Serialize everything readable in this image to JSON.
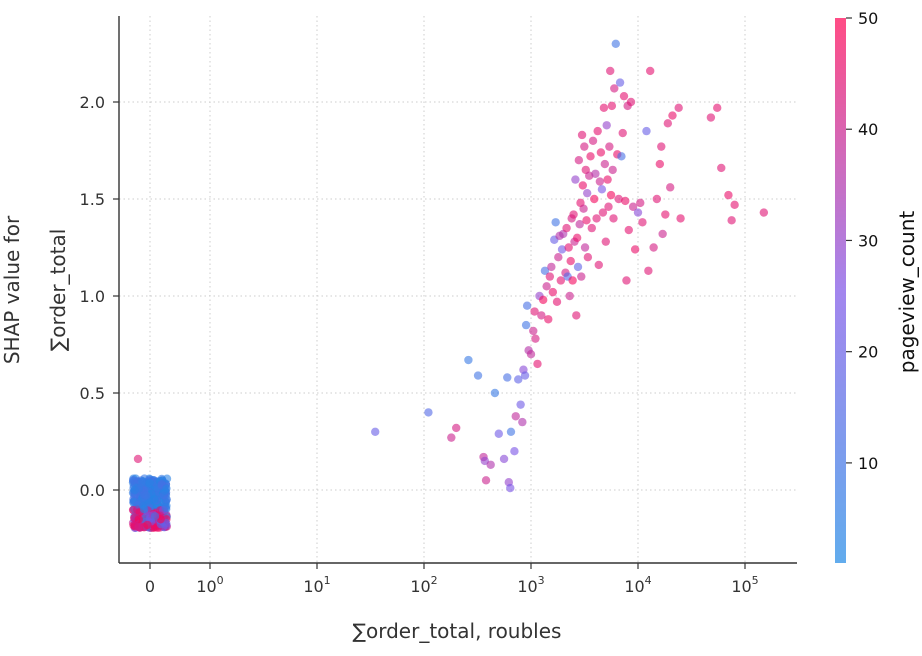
{
  "chart_data": {
    "type": "scatter",
    "title": "",
    "xlabel": "∑order_total, roubles",
    "ylabel_line1": "SHAP value for",
    "ylabel_line2": "∑order_total",
    "x_scale": "symlog",
    "x_ticks": [
      {
        "value": 0,
        "base": "0",
        "exp": ""
      },
      {
        "value": 1,
        "base": "10",
        "exp": "0"
      },
      {
        "value": 10,
        "base": "10",
        "exp": "1"
      },
      {
        "value": 100,
        "base": "10",
        "exp": "2"
      },
      {
        "value": 1000,
        "base": "10",
        "exp": "3"
      },
      {
        "value": 10000,
        "base": "10",
        "exp": "4"
      },
      {
        "value": 100000,
        "base": "10",
        "exp": "5"
      }
    ],
    "y_ticks": [
      "0.0",
      "0.5",
      "1.0",
      "1.5",
      "2.0"
    ],
    "ylim": [
      -0.34,
      2.43
    ],
    "grid": true,
    "colorbar": {
      "label": "pageview_count",
      "ticks": [
        "10",
        "20",
        "30",
        "40",
        "50"
      ],
      "range": [
        1,
        50
      ],
      "low_color": "#1E88E5",
      "high_color": "#FF0051"
    },
    "points": [
      [
        35,
        0.3,
        20
      ],
      [
        110,
        0.4,
        15
      ],
      [
        180,
        0.27,
        40
      ],
      [
        200,
        0.32,
        42
      ],
      [
        260,
        0.67,
        8
      ],
      [
        320,
        0.59,
        10
      ],
      [
        360,
        0.17,
        38
      ],
      [
        370,
        0.15,
        30
      ],
      [
        380,
        0.05,
        40
      ],
      [
        420,
        0.13,
        35
      ],
      [
        460,
        0.5,
        8
      ],
      [
        500,
        0.29,
        22
      ],
      [
        560,
        0.16,
        28
      ],
      [
        600,
        0.58,
        12
      ],
      [
        620,
        0.04,
        30
      ],
      [
        640,
        0.01,
        25
      ],
      [
        650,
        0.3,
        10
      ],
      [
        700,
        0.2,
        25
      ],
      [
        720,
        0.38,
        38
      ],
      [
        760,
        0.57,
        18
      ],
      [
        800,
        0.44,
        22
      ],
      [
        830,
        0.35,
        35
      ],
      [
        850,
        0.62,
        28
      ],
      [
        880,
        0.59,
        20
      ],
      [
        900,
        0.85,
        10
      ],
      [
        920,
        0.95,
        12
      ],
      [
        950,
        0.72,
        36
      ],
      [
        1000,
        0.7,
        38
      ],
      [
        1050,
        0.82,
        40
      ],
      [
        1080,
        0.92,
        44
      ],
      [
        1100,
        0.78,
        42
      ],
      [
        1150,
        0.65,
        45
      ],
      [
        1200,
        1.0,
        30
      ],
      [
        1250,
        0.9,
        42
      ],
      [
        1300,
        0.98,
        48
      ],
      [
        1350,
        1.13,
        12
      ],
      [
        1400,
        1.05,
        40
      ],
      [
        1450,
        0.88,
        46
      ],
      [
        1500,
        1.1,
        44
      ],
      [
        1550,
        1.15,
        38
      ],
      [
        1600,
        1.02,
        46
      ],
      [
        1650,
        1.29,
        20
      ],
      [
        1700,
        1.38,
        10
      ],
      [
        1750,
        0.97,
        45
      ],
      [
        1800,
        1.2,
        40
      ],
      [
        1850,
        1.31,
        36
      ],
      [
        1900,
        1.08,
        45
      ],
      [
        1950,
        1.24,
        22
      ],
      [
        2000,
        1.32,
        35
      ],
      [
        2100,
        1.12,
        42
      ],
      [
        2150,
        1.35,
        44
      ],
      [
        2200,
        1.1,
        15
      ],
      [
        2250,
        1.25,
        45
      ],
      [
        2300,
        1.0,
        40
      ],
      [
        2350,
        1.18,
        46
      ],
      [
        2400,
        1.4,
        42
      ],
      [
        2450,
        1.08,
        48
      ],
      [
        2500,
        1.42,
        44
      ],
      [
        2550,
        1.28,
        40
      ],
      [
        2600,
        1.6,
        30
      ],
      [
        2650,
        0.9,
        44
      ],
      [
        2700,
        1.3,
        46
      ],
      [
        2750,
        1.15,
        18
      ],
      [
        2800,
        1.7,
        42
      ],
      [
        2850,
        1.37,
        38
      ],
      [
        2900,
        1.48,
        45
      ],
      [
        2950,
        1.1,
        40
      ],
      [
        3000,
        1.83,
        44
      ],
      [
        3050,
        1.57,
        46
      ],
      [
        3100,
        1.45,
        40
      ],
      [
        3150,
        1.77,
        42
      ],
      [
        3200,
        1.25,
        38
      ],
      [
        3250,
        1.65,
        44
      ],
      [
        3300,
        1.39,
        46
      ],
      [
        3350,
        1.53,
        30
      ],
      [
        3400,
        1.2,
        44
      ],
      [
        3500,
        1.62,
        40
      ],
      [
        3600,
        1.72,
        46
      ],
      [
        3700,
        1.35,
        44
      ],
      [
        3800,
        1.8,
        42
      ],
      [
        3900,
        1.5,
        48
      ],
      [
        4000,
        1.63,
        36
      ],
      [
        4100,
        1.4,
        44
      ],
      [
        4200,
        1.85,
        45
      ],
      [
        4300,
        1.16,
        44
      ],
      [
        4400,
        1.59,
        40
      ],
      [
        4500,
        1.74,
        46
      ],
      [
        4600,
        1.55,
        25
      ],
      [
        4700,
        1.43,
        44
      ],
      [
        4800,
        1.97,
        45
      ],
      [
        4900,
        1.68,
        40
      ],
      [
        5000,
        1.28,
        44
      ],
      [
        5100,
        1.88,
        30
      ],
      [
        5200,
        1.6,
        46
      ],
      [
        5300,
        1.46,
        44
      ],
      [
        5400,
        1.77,
        42
      ],
      [
        5500,
        2.16,
        44
      ],
      [
        5600,
        1.52,
        48
      ],
      [
        5700,
        1.98,
        45
      ],
      [
        5800,
        1.65,
        40
      ],
      [
        5900,
        1.4,
        44
      ],
      [
        6000,
        2.07,
        42
      ],
      [
        6200,
        2.3,
        10
      ],
      [
        6400,
        1.73,
        46
      ],
      [
        6600,
        1.5,
        44
      ],
      [
        6800,
        2.1,
        20
      ],
      [
        7000,
        1.72,
        12
      ],
      [
        7200,
        1.84,
        44
      ],
      [
        7400,
        2.03,
        45
      ],
      [
        7600,
        1.49,
        46
      ],
      [
        7800,
        1.08,
        44
      ],
      [
        8000,
        1.98,
        42
      ],
      [
        8200,
        1.34,
        45
      ],
      [
        8600,
        2.0,
        44
      ],
      [
        9000,
        1.46,
        40
      ],
      [
        9400,
        1.24,
        46
      ],
      [
        10000,
        1.43,
        28
      ],
      [
        10500,
        1.48,
        42
      ],
      [
        11000,
        1.38,
        44
      ],
      [
        12000,
        1.85,
        20
      ],
      [
        12500,
        1.13,
        44
      ],
      [
        13000,
        2.16,
        45
      ],
      [
        14000,
        1.25,
        42
      ],
      [
        15000,
        1.5,
        44
      ],
      [
        16000,
        1.68,
        46
      ],
      [
        16500,
        1.77,
        44
      ],
      [
        17000,
        1.32,
        40
      ],
      [
        18000,
        1.42,
        45
      ],
      [
        19000,
        1.89,
        44
      ],
      [
        20000,
        1.56,
        42
      ],
      [
        21000,
        1.93,
        46
      ],
      [
        24000,
        1.97,
        44
      ],
      [
        25000,
        1.4,
        45
      ],
      [
        48000,
        1.92,
        44
      ],
      [
        55000,
        1.97,
        45
      ],
      [
        60000,
        1.66,
        44
      ],
      [
        70000,
        1.52,
        46
      ],
      [
        75000,
        1.39,
        44
      ],
      [
        80000,
        1.47,
        45
      ],
      [
        150000,
        1.43,
        44
      ]
    ],
    "zero_cluster": {
      "x": 0,
      "y_min": -0.24,
      "y_max": 0.06,
      "outliers": [
        [
          0,
          0.16,
          44
        ]
      ]
    }
  }
}
